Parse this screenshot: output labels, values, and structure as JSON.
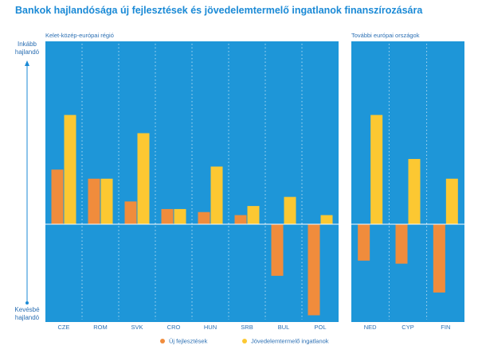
{
  "title": "Bankok hajlandósága új fejlesztések és jövedelemtermelő ingatlanok finanszírozására",
  "colors": {
    "panel": "#1e96d8",
    "series_new": "#f08c3c",
    "series_income": "#fcc832",
    "axis_text": "#2b6fb3",
    "arrow": "#1b8ad6"
  },
  "y_axis": {
    "top_label_line1": "Inkább",
    "top_label_line2": "hajlandó",
    "bottom_label_line1": "Kevésbé",
    "bottom_label_line2": "hajlandó"
  },
  "legend": [
    {
      "name": "Új fejlesztések",
      "color": "#f08c3c"
    },
    {
      "name": "Jövedelemtermelő ingatlanok",
      "color": "#fcc832"
    }
  ],
  "chart_data": [
    {
      "type": "bar",
      "title": "Kelet-közép-európai régió",
      "categories": [
        "CZE",
        "ROM",
        "SVK",
        "CRO",
        "HUN",
        "SRB",
        "BUL",
        "POL"
      ],
      "series": [
        {
          "name": "Új fejlesztések",
          "values": [
            0.36,
            0.3,
            0.15,
            0.1,
            0.08,
            0.06,
            -0.34,
            -0.6
          ]
        },
        {
          "name": "Jövedelemtermelő ingatlanok",
          "values": [
            0.72,
            0.3,
            0.6,
            0.1,
            0.38,
            0.12,
            0.18,
            0.06
          ]
        }
      ],
      "ylim": [
        -0.64,
        1.2
      ],
      "grid": true,
      "legend_position": "bottom"
    },
    {
      "type": "bar",
      "title": "További európai országok",
      "categories": [
        "NED",
        "CYP",
        "FIN"
      ],
      "series": [
        {
          "name": "Új fejlesztések",
          "values": [
            -0.24,
            -0.26,
            -0.45
          ]
        },
        {
          "name": "Jövedelemtermelő ingatlanok",
          "values": [
            0.72,
            0.43,
            0.3
          ]
        }
      ],
      "ylim": [
        -0.64,
        1.2
      ],
      "grid": true,
      "legend_position": "bottom"
    }
  ]
}
